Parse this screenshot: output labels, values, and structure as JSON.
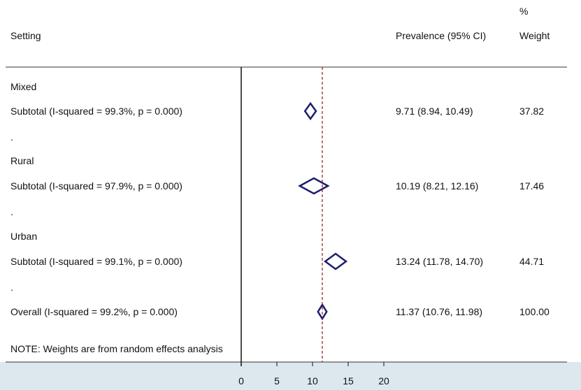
{
  "chart_data": {
    "type": "forest",
    "header": {
      "col1": "Setting",
      "col2": "Prevalence (95% CI)",
      "col3_line1": "%",
      "col3_line2": "Weight"
    },
    "rows": [
      {
        "kind": "group",
        "label": "Mixed"
      },
      {
        "kind": "subtotal",
        "label": "Subtotal  (I-squared = 99.3%, p = 0.000)",
        "estimate": 9.71,
        "lower": 8.94,
        "upper": 10.49,
        "ci_text": "9.71 (8.94, 10.49)",
        "weight": "37.82"
      },
      {
        "kind": "spacer",
        "label": "."
      },
      {
        "kind": "group",
        "label": "Rural"
      },
      {
        "kind": "subtotal",
        "label": "Subtotal  (I-squared = 97.9%, p = 0.000)",
        "estimate": 10.19,
        "lower": 8.21,
        "upper": 12.16,
        "ci_text": "10.19 (8.21, 12.16)",
        "weight": "17.46"
      },
      {
        "kind": "spacer",
        "label": "."
      },
      {
        "kind": "group",
        "label": "Urban"
      },
      {
        "kind": "subtotal",
        "label": "Subtotal  (I-squared = 99.1%, p = 0.000)",
        "estimate": 13.24,
        "lower": 11.78,
        "upper": 14.7,
        "ci_text": "13.24 (11.78, 14.70)",
        "weight": "44.71"
      },
      {
        "kind": "spacer",
        "label": "."
      },
      {
        "kind": "overall",
        "label": "Overall  (I-squared = 99.2%, p = 0.000)",
        "estimate": 11.37,
        "lower": 10.76,
        "upper": 11.98,
        "ci_text": "11.37 (10.76, 11.98)",
        "weight": "100.00"
      }
    ],
    "note": "NOTE: Weights are from random effects analysis",
    "x_ticks": [
      0,
      5,
      10,
      15,
      20
    ],
    "x_range": [
      0,
      20
    ],
    "null_line": 0,
    "overall_line": 11.37,
    "colors": {
      "diamond": "#1a1f6b",
      "overall_line": "#8b1a1a",
      "axis_band": "#dde8ee",
      "rule": "#333333"
    }
  }
}
